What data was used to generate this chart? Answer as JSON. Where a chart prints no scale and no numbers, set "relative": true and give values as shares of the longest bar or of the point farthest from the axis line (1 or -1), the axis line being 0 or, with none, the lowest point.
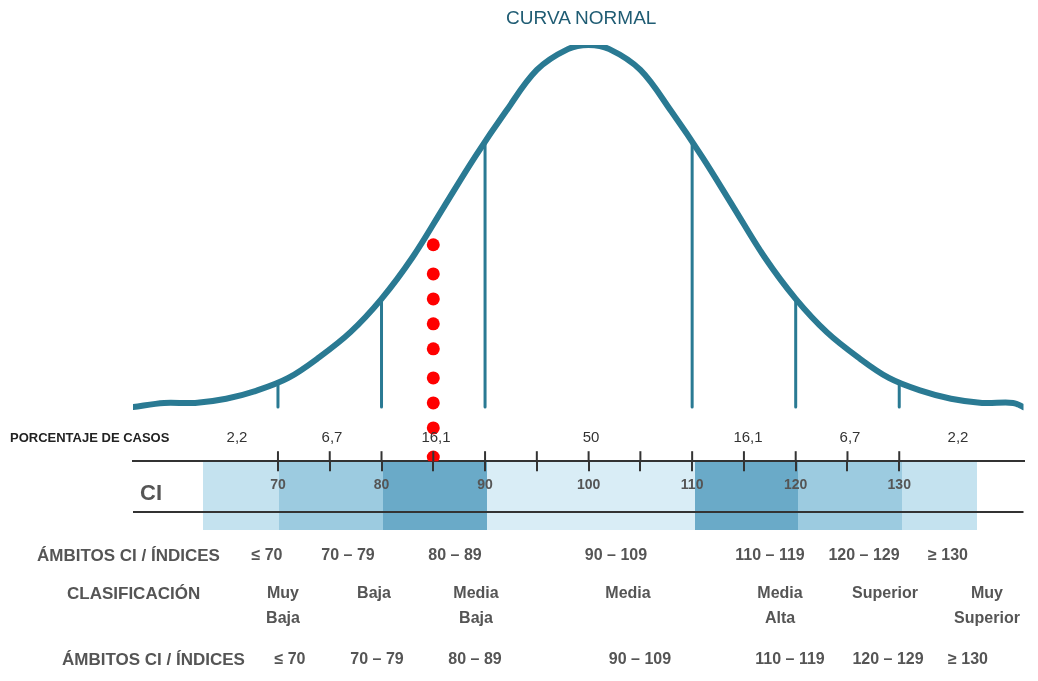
{
  "chart_data": {
    "type": "line",
    "title": "CURVA NORMAL",
    "xlabel": "CI",
    "relative": true,
    "xlim": [
      56,
      142
    ],
    "xticks": [
      70,
      {
        "value": 75,
        "label": null
      },
      80,
      {
        "value": 85,
        "label": null
      },
      90,
      {
        "value": 95,
        "label": null
      },
      100,
      {
        "value": 105,
        "label": null
      },
      110,
      {
        "value": 115,
        "label": null
      },
      120,
      {
        "value": 125,
        "label": null
      },
      130
    ],
    "series": [
      {
        "color": "#2a7a93",
        "x": [
          56,
          59,
          62,
          65,
          68,
          71,
          74,
          77,
          80,
          83,
          86,
          89,
          92,
          95,
          98,
          100,
          102,
          105,
          108,
          111,
          114,
          117,
          120,
          123,
          126,
          129,
          132,
          135,
          138,
          141,
          142
        ],
        "values": [
          0.13,
          0.14,
          0.14,
          0.15,
          0.17,
          0.2,
          0.25,
          0.31,
          0.39,
          0.49,
          0.61,
          0.73,
          0.84,
          0.94,
          0.99,
          1,
          0.99,
          0.94,
          0.84,
          0.73,
          0.61,
          0.49,
          0.39,
          0.31,
          0.25,
          0.2,
          0.17,
          0.15,
          0.14,
          0.14,
          0.13
        ]
      },
      {
        "color": "#2a7a93",
        "x": [
          70,
          70
        ],
        "values": [
          0.13,
          0.19
        ]
      },
      {
        "color": "#2a7a93",
        "x": [
          80,
          80
        ],
        "values": [
          0.13,
          0.39
        ]
      },
      {
        "color": "#2a7a93",
        "x": [
          90,
          90
        ],
        "values": [
          0.13,
          0.77
        ]
      },
      {
        "color": "#2a7a93",
        "x": [
          110,
          110
        ],
        "values": [
          0.13,
          0.77
        ]
      },
      {
        "color": "#2a7a93",
        "x": [
          120,
          120
        ],
        "values": [
          0.13,
          0.39
        ]
      },
      {
        "color": "#2a7a93",
        "x": [
          130,
          130
        ],
        "values": [
          0.13,
          0.19
        ]
      },
      {
        "type": "scatter",
        "marker": "circle",
        "color": "#ff0000",
        "x": [
          85,
          85,
          85,
          85,
          85,
          85,
          85,
          85,
          85
        ],
        "values": [
          0.52,
          0.45,
          0.39,
          0.33,
          0.27,
          0.2,
          0.14,
          0.08,
          0.01
        ]
      }
    ],
    "annotations": [
      "PORCENTAJE DE CASOS",
      "2,2",
      "6,7",
      "16,1",
      "50",
      "16,1",
      "6,7",
      "2,2",
      "ÁMBITOS CI / ÍNDICES",
      "≤ 70",
      "70 – 79",
      "80 – 89",
      "90 – 109",
      "110 – 119",
      "120 – 129",
      "≥ 130",
      "CLASIFICACIÓN",
      "Muy\nBaja",
      "Baja",
      "Media\nBaja",
      "Media",
      "Media\nAlta",
      "Superior",
      "Muy\nSuperior",
      "ÁMBITOS CI / ÍNDICES",
      "≤ 70",
      "70 – 79",
      "80 – 89",
      "90 – 109",
      "110 – 119",
      "120 – 129",
      "≥ 130"
    ]
  }
}
